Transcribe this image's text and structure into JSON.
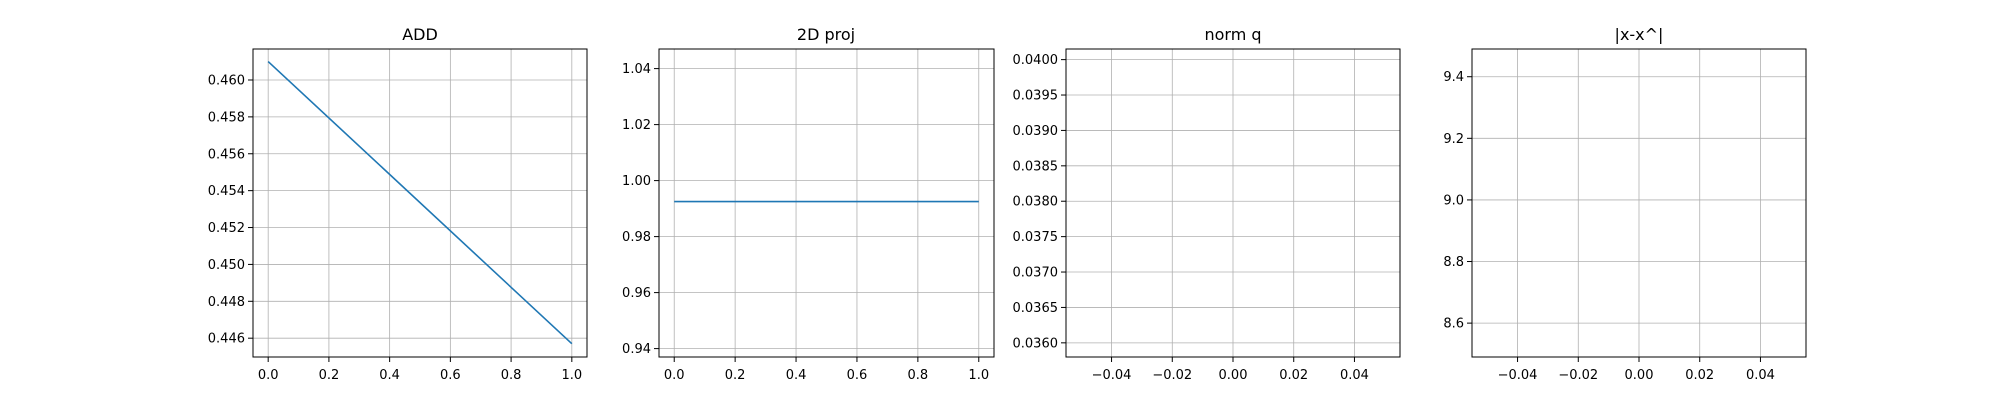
{
  "chart_data": [
    {
      "type": "line",
      "title": "ADD",
      "xlabel": "",
      "ylabel": "",
      "grid": true,
      "xlim": [
        -0.05,
        1.05
      ],
      "ylim": [
        0.44498,
        0.46168
      ],
      "xticks": [
        "0.0",
        "0.2",
        "0.4",
        "0.6",
        "0.8",
        "1.0"
      ],
      "yticks": [
        "0.446",
        "0.448",
        "0.450",
        "0.452",
        "0.454",
        "0.456",
        "0.458",
        "0.460"
      ],
      "series": [
        {
          "x": [
            0,
            1
          ],
          "values": [
            0.461,
            0.4457
          ]
        }
      ]
    },
    {
      "type": "line",
      "title": "2D proj",
      "xlabel": "",
      "ylabel": "",
      "grid": true,
      "xlim": [
        -0.05,
        1.05
      ],
      "ylim": [
        0.937,
        1.047
      ],
      "xticks": [
        "0.0",
        "0.2",
        "0.4",
        "0.6",
        "0.8",
        "1.0"
      ],
      "yticks": [
        "0.94",
        "0.96",
        "0.98",
        "1.00",
        "1.02",
        "1.04"
      ],
      "series": [
        {
          "x": [
            0,
            1
          ],
          "values": [
            0.9925,
            0.9925
          ]
        }
      ]
    },
    {
      "type": "line",
      "title": "norm q",
      "xlabel": "",
      "ylabel": "",
      "grid": true,
      "xlim": [
        -0.055,
        0.055
      ],
      "ylim": [
        0.0358,
        0.04015
      ],
      "xticks": [
        "−0.04",
        "−0.02",
        "0.00",
        "0.02",
        "0.04"
      ],
      "yticks": [
        "0.0360",
        "0.0365",
        "0.0370",
        "0.0375",
        "0.0380",
        "0.0385",
        "0.0390",
        "0.0395",
        "0.0400"
      ],
      "series": []
    },
    {
      "type": "line",
      "title": "|x-x^|",
      "xlabel": "",
      "ylabel": "",
      "grid": true,
      "xlim": [
        -0.055,
        0.055
      ],
      "ylim": [
        8.49,
        9.49
      ],
      "xticks": [
        "−0.04",
        "−0.02",
        "0.00",
        "0.02",
        "0.04"
      ],
      "yticks": [
        "8.6",
        "8.8",
        "9.0",
        "9.2",
        "9.4"
      ],
      "series": []
    }
  ],
  "colors": {
    "line": "#1f77b4",
    "grid": "#b0b0b0",
    "axes": "#000000"
  }
}
